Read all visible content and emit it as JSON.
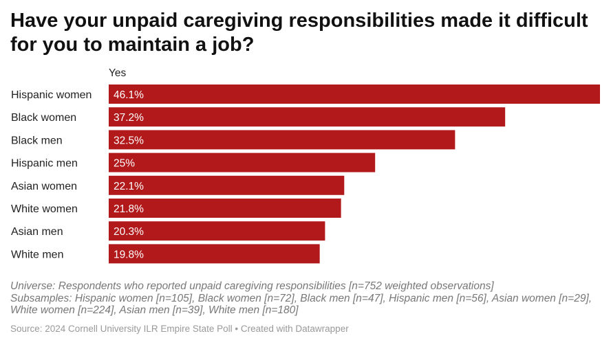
{
  "title": "Have your unpaid caregiving responsibilities made it difficult for you to maintain a job?",
  "chart_data": {
    "type": "bar",
    "orientation": "horizontal",
    "column_header": "Yes",
    "categories": [
      "Hispanic women",
      "Black women",
      "Black men",
      "Hispanic men",
      "Asian women",
      "White women",
      "Asian men",
      "White men"
    ],
    "values": [
      46.1,
      37.2,
      32.5,
      25,
      22.1,
      21.8,
      20.3,
      19.8
    ],
    "value_labels": [
      "46.1%",
      "37.2%",
      "32.5%",
      "25%",
      "22.1%",
      "21.8%",
      "20.3%",
      "19.8%"
    ],
    "xlim": [
      0,
      46.1
    ],
    "grid": false,
    "legend": "none",
    "bar_color": "#b2191b"
  },
  "notes": {
    "universe": "Universe: Respondents who reported unpaid caregiving responsibilities [n=752 weighted observations]",
    "subsamples": "Subsamples: Hispanic women [n=105], Black women [n=72], Black men [n=47], Hispanic men [n=56], Asian women [n=29], White women [n=224], Asian men [n=39], White men [n=180]"
  },
  "source": "Source: 2024 Cornell University ILR Empire State Poll • Created with Datawrapper"
}
